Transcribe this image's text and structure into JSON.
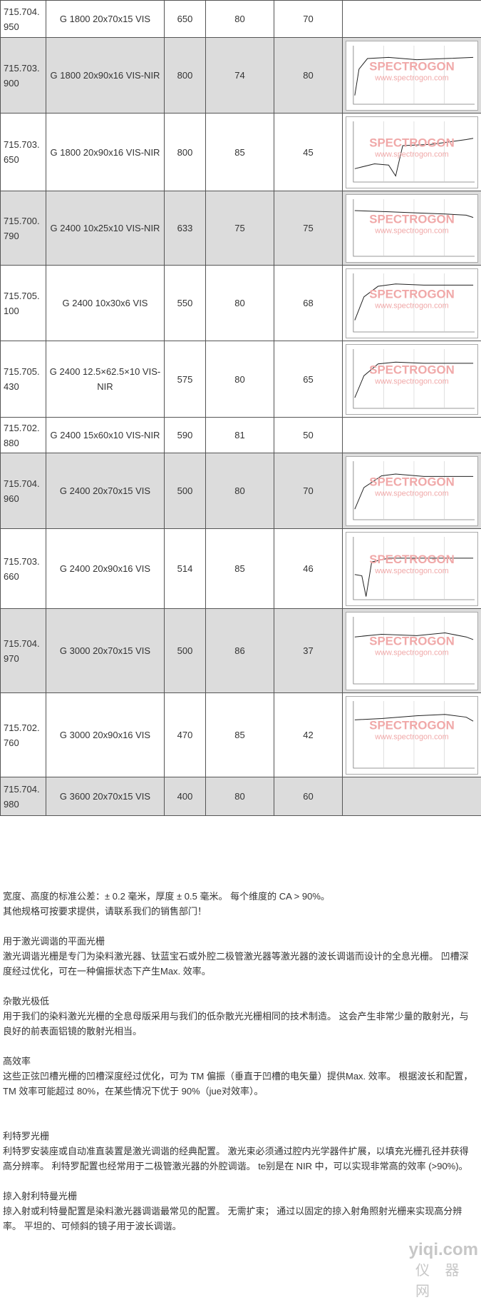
{
  "rows": [
    {
      "code": "715.704.950",
      "grating": "G 1800 20x70x15 VIS",
      "wavelength": "650",
      "efficiency": "80",
      "ca": "70",
      "ca_red": false,
      "graph": false,
      "gray": false,
      "h": 52
    },
    {
      "code": "715.703.900",
      "grating": "G 1800 20x90x16 VIS-NIR",
      "wavelength": "800",
      "efficiency": "74",
      "ca": "80",
      "ca_red": true,
      "graph": true,
      "gray": true,
      "h": 106
    },
    {
      "code": "715.703.650",
      "grating": "G 1800 20x90x16 VIS-NIR",
      "wavelength": "800",
      "efficiency": "85",
      "ca": "45",
      "ca_red": true,
      "graph": true,
      "gray": false,
      "h": 109
    },
    {
      "code": "715.700.790",
      "grating": "G 2400 10x25x10 VIS-NIR",
      "wavelength": "633",
      "efficiency": "75",
      "ca": "75",
      "ca_red": true,
      "graph": true,
      "gray": true,
      "h": 104
    },
    {
      "code": "715.705.100",
      "grating": "G 2400 10x30x6 VIS",
      "wavelength": "550",
      "efficiency": "80",
      "ca": "68",
      "ca_red": true,
      "graph": true,
      "gray": false,
      "h": 106
    },
    {
      "code": "715.705.430",
      "grating": "G 2400 12.5×62.5×10 VIS-NIR",
      "wavelength": "575",
      "efficiency": "80",
      "ca": "65",
      "ca_red": true,
      "graph": true,
      "gray": false,
      "h": 107
    },
    {
      "code": "715.702.880",
      "grating": "G 2400 15x60x10 VIS-NIR",
      "wavelength": "590",
      "efficiency": "81",
      "ca": "50",
      "ca_red": false,
      "graph": false,
      "gray": false,
      "h": 50
    },
    {
      "code": "715.704.960",
      "grating": "G 2400 20x70x15 VIS",
      "wavelength": "500",
      "efficiency": "80",
      "ca": "70",
      "ca_red": true,
      "graph": true,
      "gray": true,
      "h": 106
    },
    {
      "code": "715.703.660",
      "grating": "G 2400 20x90x16 VIS",
      "wavelength": "514",
      "efficiency": "85",
      "ca": "46",
      "ca_red": true,
      "graph": true,
      "gray": false,
      "h": 112
    },
    {
      "code": "715.704.970",
      "grating": "G 3000 20x70x15 VIS",
      "wavelength": "500",
      "efficiency": "86",
      "ca": "37",
      "ca_red": true,
      "graph": true,
      "gray": true,
      "h": 118
    },
    {
      "code": "715.702.760",
      "grating": "G 3000 20x90x16 VIS",
      "wavelength": "470",
      "efficiency": "85",
      "ca": "42",
      "ca_red": true,
      "graph": true,
      "gray": false,
      "h": 118
    },
    {
      "code": "715.704.980",
      "grating": "G 3600 20x70x15 VIS",
      "wavelength": "400",
      "efficiency": "80",
      "ca": "60",
      "ca_red": false,
      "graph": false,
      "gray": true,
      "h": 54
    }
  ],
  "chart_watermark": {
    "brand": "SPECTROGON",
    "url": "www.spectrogon.com"
  },
  "notes": {
    "tolerance": "宽度、高度的标准公差：± 0.2 毫米，厚度 ± 0.5 毫米。 每个维度的 CA > 90%。",
    "contact": "其他规格可按要求提供，请联系我们的销售部门！"
  },
  "sections": [
    {
      "heading": "用于激光调谐的平面光栅",
      "body": "激光调谐光栅是专门为染料激光器、钛蓝宝石或外腔二极管激光器等激光器的波长调谐而设计的全息光栅。 凹槽深度经过优化，可在一种偏振状态下产生Max. 效率。"
    },
    {
      "heading": "杂散光极低",
      "body": "用于我们的染料激光光栅的全息母版采用与我们的低杂散光光栅相同的技术制造。 这会产生非常少量的散射光，与良好的前表面铝镜的散射光相当。"
    },
    {
      "heading": "高效率",
      "body": "这些正弦凹槽光栅的凹槽深度经过优化，可为 TM 偏振（垂直于凹槽的电矢量）提供Max. 效率。 根据波长和配置，TM 效率可能超过 80%，在某些情况下优于 90%（jue对效率）。"
    },
    {
      "heading": "利特罗光栅",
      "body": "利特罗安装座或自动准直装置是激光调谐的经典配置。 激光束必须通过腔内光学器件扩展，以填充光栅孔径并获得高分辨率。 利特罗配置也经常用于二极管激光器的外腔调谐。 te别是在 NIR 中，可以实现非常高的效率 (>90%)。"
    },
    {
      "heading": "掠入射利特曼光栅",
      "body": "掠入射或利特曼配置是染料激光器调谐最常见的配置。 无需扩束； 通过以固定的掠入射角照射光栅来实现高分辨率。 平坦的、可倾斜的镜子用于波长调谐。"
    }
  ],
  "site_watermark": {
    "domain": "yiqi.com",
    "name": "仪 器 网"
  }
}
